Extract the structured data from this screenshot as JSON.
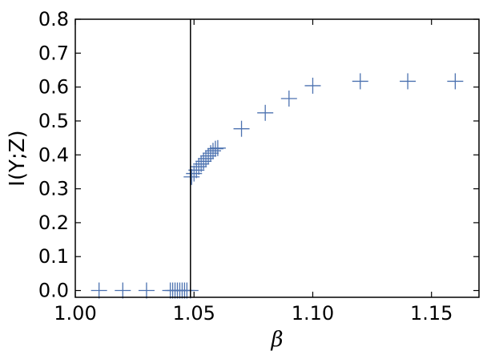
{
  "chart_data": {
    "type": "scatter",
    "xlabel": "β",
    "ylabel": "I(Y;Z)",
    "xlim": [
      1.0,
      1.17
    ],
    "ylim": [
      -0.02,
      0.8
    ],
    "xticks": [
      "1.00",
      "1.05",
      "1.10",
      "1.15"
    ],
    "yticks": [
      "0.0",
      "0.1",
      "0.2",
      "0.3",
      "0.4",
      "0.5",
      "0.6",
      "0.7",
      "0.8"
    ],
    "xtick_values": [
      1.0,
      1.05,
      1.1,
      1.15
    ],
    "ytick_values": [
      0.0,
      0.1,
      0.2,
      0.3,
      0.4,
      0.5,
      0.6,
      0.7,
      0.8
    ],
    "vline_x": 1.0485,
    "marker": "plus",
    "marker_color": "#4c72b0",
    "grid": false,
    "series": [
      {
        "points": [
          [
            1.01,
            0.0
          ],
          [
            1.02,
            0.0
          ],
          [
            1.03,
            0.0
          ],
          [
            1.04,
            0.0
          ],
          [
            1.041,
            0.0
          ],
          [
            1.042,
            0.0
          ],
          [
            1.043,
            0.0
          ],
          [
            1.044,
            0.0
          ],
          [
            1.045,
            0.0
          ],
          [
            1.046,
            0.0
          ],
          [
            1.047,
            0.0
          ],
          [
            1.0485,
            0.0
          ],
          [
            1.049,
            0.335
          ],
          [
            1.05,
            0.345
          ],
          [
            1.051,
            0.355
          ],
          [
            1.052,
            0.365
          ],
          [
            1.053,
            0.373
          ],
          [
            1.054,
            0.381
          ],
          [
            1.055,
            0.389
          ],
          [
            1.056,
            0.397
          ],
          [
            1.057,
            0.405
          ],
          [
            1.058,
            0.412
          ],
          [
            1.059,
            0.418
          ],
          [
            1.06,
            0.42
          ],
          [
            1.07,
            0.477
          ],
          [
            1.08,
            0.524
          ],
          [
            1.09,
            0.566
          ],
          [
            1.1,
            0.604
          ],
          [
            1.12,
            0.617
          ],
          [
            1.14,
            0.617
          ],
          [
            1.16,
            0.617
          ]
        ]
      }
    ]
  }
}
